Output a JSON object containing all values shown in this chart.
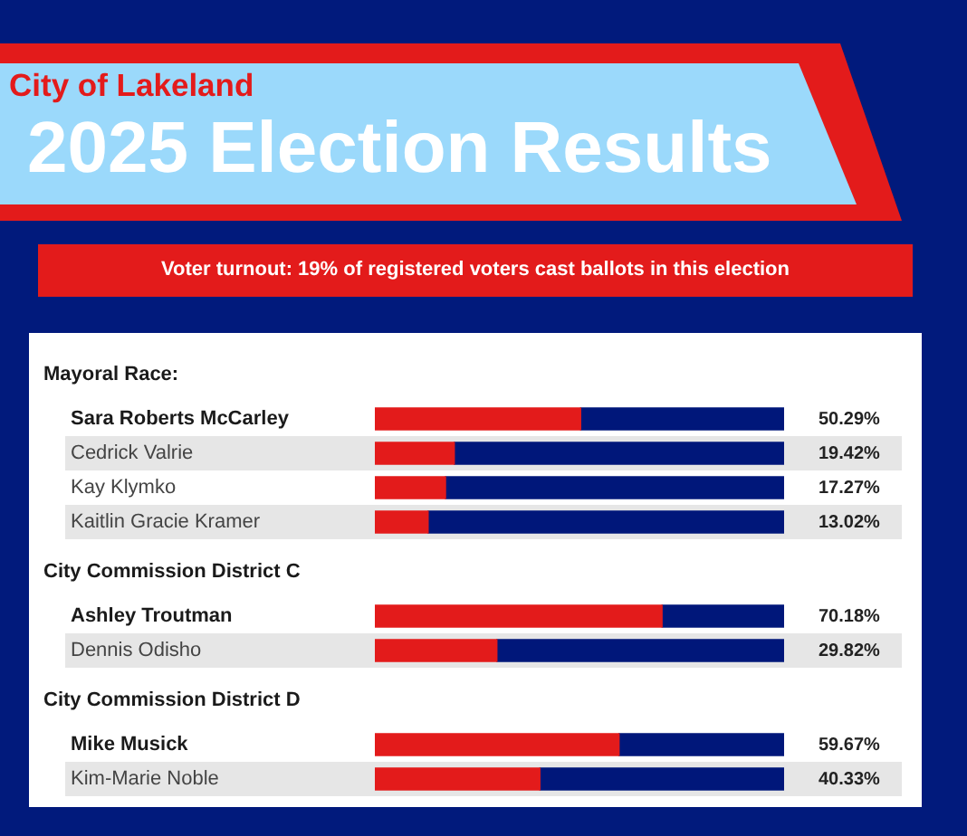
{
  "chart_data": [
    {
      "type": "other",
      "title": "2025 Election Results",
      "subtitle": "City of Lakeland",
      "annotations": [
        "Voter turnout: 19% of registered voters cast ballots in this election"
      ]
    },
    {
      "type": "bar",
      "title": "Mayoral Race:",
      "orientation": "horizontal",
      "stacked": true,
      "categories": [
        "Sara Roberts McCarley",
        "Cedrick Valrie",
        "Kay Klymko",
        "Kaitlin Gracie Kramer"
      ],
      "series": [
        {
          "color": "#e31b1b",
          "values": [
            50.29,
            19.42,
            17.27,
            13.02
          ],
          "value_labels": [
            "50.29%",
            "19.42%",
            "17.27%",
            "13.02%"
          ]
        },
        {
          "color": "#00177a",
          "values": [
            49.71,
            80.58,
            82.73,
            86.98
          ]
        }
      ],
      "xlim": [
        0,
        100
      ],
      "tick_labels": "y"
    },
    {
      "type": "bar",
      "title": "City Commission District C",
      "orientation": "horizontal",
      "stacked": true,
      "categories": [
        "Ashley Troutman",
        "Dennis Odisho"
      ],
      "series": [
        {
          "color": "#e31b1b",
          "values": [
            70.18,
            29.82
          ],
          "value_labels": [
            "70.18%",
            "29.82%"
          ]
        },
        {
          "color": "#00177a",
          "values": [
            29.82,
            70.18
          ]
        }
      ],
      "xlim": [
        0,
        100
      ],
      "tick_labels": "y"
    },
    {
      "type": "bar",
      "title": "City Commission District D",
      "orientation": "horizontal",
      "stacked": true,
      "categories": [
        "Mike Musick",
        "Kim-Marie Noble"
      ],
      "series": [
        {
          "color": "#e31b1b",
          "values": [
            59.67,
            40.33
          ],
          "value_labels": [
            "59.67%",
            "40.33%"
          ]
        },
        {
          "color": "#00177a",
          "values": [
            40.33,
            59.67
          ]
        }
      ],
      "xlim": [
        0,
        100
      ],
      "tick_labels": "y"
    }
  ]
}
